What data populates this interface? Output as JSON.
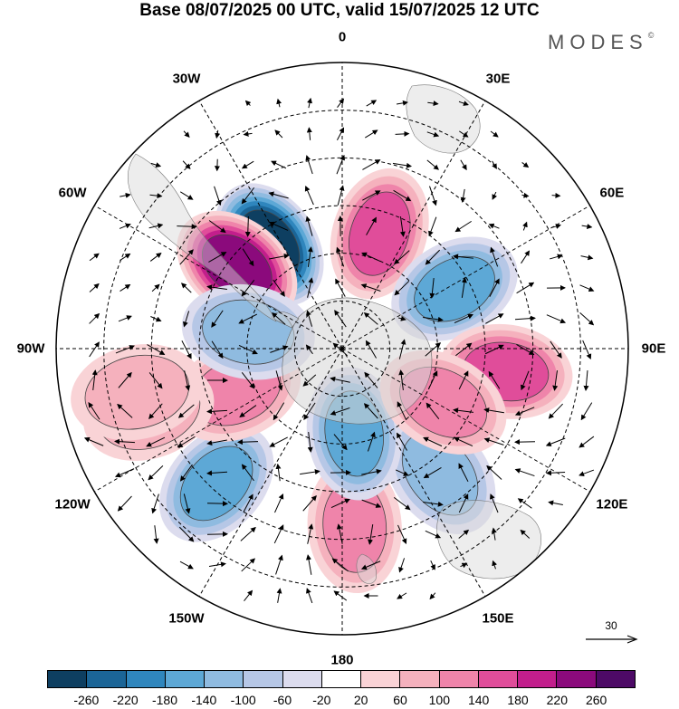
{
  "title": "Base 08/07/2025 00 UTC, valid 15/07/2025 12 UTC",
  "logo": "MODES",
  "logo_mark": "©",
  "longitude_labels": [
    {
      "id": "lon-0",
      "text": "0",
      "angle": 0
    },
    {
      "id": "lon-30e",
      "text": "30E",
      "angle": 30
    },
    {
      "id": "lon-60e",
      "text": "60E",
      "angle": 60
    },
    {
      "id": "lon-90e",
      "text": "90E",
      "angle": 90
    },
    {
      "id": "lon-120e",
      "text": "120E",
      "angle": 120
    },
    {
      "id": "lon-150e",
      "text": "150E",
      "angle": 150
    },
    {
      "id": "lon-180",
      "text": "180",
      "angle": 180
    },
    {
      "id": "lon-150w",
      "text": "150W",
      "angle": 210
    },
    {
      "id": "lon-120w",
      "text": "120W",
      "angle": 240
    },
    {
      "id": "lon-90w",
      "text": "90W",
      "angle": 270
    },
    {
      "id": "lon-60w",
      "text": "60W",
      "angle": 300
    },
    {
      "id": "lon-30w",
      "text": "30W",
      "angle": 330
    }
  ],
  "reference_vector": {
    "label": "30"
  },
  "colorbar": {
    "colors": [
      "#0e3f61",
      "#1b6597",
      "#2f86bd",
      "#5da8d6",
      "#8fbbe0",
      "#b6c7e6",
      "#dcdcee",
      "#ffffff",
      "#f9d3d6",
      "#f5b1bd",
      "#ef84aa",
      "#e04d9a",
      "#c21e8c",
      "#8b0a7c",
      "#4d0a66"
    ],
    "tick_labels": [
      "-260",
      "-220",
      "-180",
      "-140",
      "-100",
      "-60",
      "-20",
      "20",
      "60",
      "100",
      "140",
      "180",
      "220",
      "260"
    ]
  },
  "anomaly_centers": [
    {
      "lon": -35,
      "colat": 40,
      "value": -270
    },
    {
      "lon": -52,
      "colat": 42,
      "value": 250
    },
    {
      "lon": 18,
      "colat": 38,
      "value": 170
    },
    {
      "lon": 62,
      "colat": 40,
      "value": -150
    },
    {
      "lon": 98,
      "colat": 52,
      "value": 170
    },
    {
      "lon": 142,
      "colat": 50,
      "value": -110
    },
    {
      "lon": 176,
      "colat": 56,
      "value": 120
    },
    {
      "lon": 172,
      "colat": 27,
      "value": -140
    },
    {
      "lon": -137,
      "colat": 58,
      "value": -160
    },
    {
      "lon": -112,
      "colat": 36,
      "value": 110
    },
    {
      "lon": -80,
      "colat": 30,
      "value": -130
    },
    {
      "lon": -108,
      "colat": 64,
      "value": 60
    },
    {
      "lon": -102,
      "colat": 66,
      "value": 60
    },
    {
      "lon": 118,
      "colat": 36,
      "value": 110
    }
  ]
}
